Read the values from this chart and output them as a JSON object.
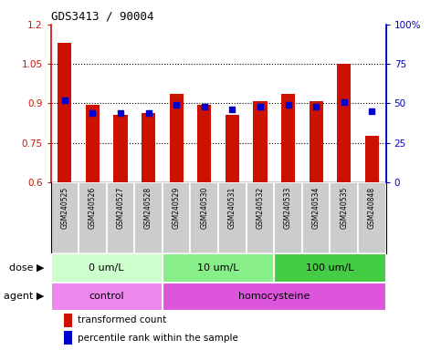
{
  "title": "GDS3413 / 90004",
  "samples": [
    "GSM240525",
    "GSM240526",
    "GSM240527",
    "GSM240528",
    "GSM240529",
    "GSM240530",
    "GSM240531",
    "GSM240532",
    "GSM240533",
    "GSM240534",
    "GSM240535",
    "GSM240848"
  ],
  "transformed_count": [
    1.13,
    0.895,
    0.855,
    0.865,
    0.935,
    0.895,
    0.855,
    0.91,
    0.935,
    0.91,
    1.05,
    0.775
  ],
  "percentile_rank": [
    52,
    44,
    44,
    44,
    49,
    48,
    46,
    48,
    49,
    48,
    51,
    45
  ],
  "ylim_left": [
    0.6,
    1.2
  ],
  "ylim_right": [
    0,
    100
  ],
  "yticks_left": [
    0.6,
    0.75,
    0.9,
    1.05,
    1.2
  ],
  "ytick_labels_left": [
    "0.6",
    "0.75",
    "0.9",
    "1.05",
    "1.2"
  ],
  "yticks_right": [
    0,
    25,
    50,
    75,
    100
  ],
  "ytick_labels_right": [
    "0",
    "25",
    "50",
    "75",
    "100%"
  ],
  "bar_color": "#cc1100",
  "dot_color": "#0000cc",
  "dose_groups": [
    {
      "label": "0 um/L",
      "start": 0,
      "end": 4,
      "color": "#ccffcc"
    },
    {
      "label": "10 um/L",
      "start": 4,
      "end": 8,
      "color": "#88ee88"
    },
    {
      "label": "100 um/L",
      "start": 8,
      "end": 12,
      "color": "#44cc44"
    }
  ],
  "agent_groups": [
    {
      "label": "control",
      "start": 0,
      "end": 4,
      "color": "#ee88ee"
    },
    {
      "label": "homocysteine",
      "start": 4,
      "end": 12,
      "color": "#dd55dd"
    }
  ],
  "dose_label": "dose",
  "agent_label": "agent",
  "legend_bar_label": "transformed count",
  "legend_dot_label": "percentile rank within the sample",
  "background_color": "#ffffff",
  "sample_box_color": "#cccccc",
  "gridline_yticks": [
    0.75,
    0.9,
    1.05
  ]
}
